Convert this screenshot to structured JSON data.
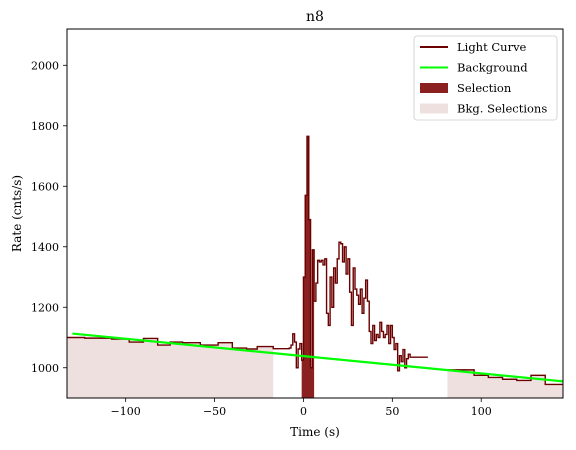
{
  "chart_data": {
    "type": "line",
    "title": "n8",
    "xlabel": "Time (s)",
    "ylabel": "Rate (cnts/s)",
    "xlim": [
      -133,
      146
    ],
    "ylim": [
      900,
      2120
    ],
    "xticks": [
      -100,
      -50,
      0,
      50,
      100
    ],
    "yticks": [
      1000,
      1200,
      1400,
      1600,
      1800,
      2000
    ],
    "legend_placement": "top-right",
    "grid": false,
    "colors": {
      "light_curve": "#6b0000",
      "background": "#00ff00",
      "selection": "#8b2020",
      "bkg_selections": "#efe0e0"
    },
    "legend": [
      {
        "label": "Light Curve",
        "kind": "line",
        "color_key": "light_curve"
      },
      {
        "label": "Background",
        "kind": "line",
        "color_key": "background"
      },
      {
        "label": "Selection",
        "kind": "patch",
        "color_key": "selection"
      },
      {
        "label": "Bkg. Selections",
        "kind": "patch",
        "color_key": "bkg_selections"
      }
    ],
    "background_line": {
      "x": [
        -130,
        146
      ],
      "y": [
        1113,
        955
      ]
    },
    "bkg_selections": [
      [
        -133,
        -17
      ],
      [
        81,
        146
      ]
    ],
    "selection": [
      -1,
      6
    ],
    "light_curve_steps": [
      [
        -133,
        -123,
        1100
      ],
      [
        -123,
        -108,
        1098
      ],
      [
        -108,
        -98,
        1095
      ],
      [
        -98,
        -90,
        1085
      ],
      [
        -90,
        -82,
        1097
      ],
      [
        -82,
        -75,
        1075
      ],
      [
        -75,
        -68,
        1085
      ],
      [
        -68,
        -58,
        1083
      ],
      [
        -58,
        -48,
        1075
      ],
      [
        -48,
        -40,
        1083
      ],
      [
        -40,
        -32,
        1065
      ],
      [
        -32,
        -26,
        1062
      ],
      [
        -26,
        -17,
        1070
      ],
      [
        -17,
        -8,
        1063
      ],
      [
        -8,
        -7,
        1065
      ],
      [
        -7,
        -6,
        1075
      ],
      [
        -6,
        -5,
        1112
      ],
      [
        -5,
        -4,
        1085
      ],
      [
        -4,
        -3,
        1000
      ],
      [
        -3,
        -2,
        1062
      ],
      [
        -2,
        -1,
        1080
      ],
      [
        -1,
        0,
        1025
      ],
      [
        0,
        1,
        1300
      ],
      [
        1,
        2,
        1570
      ],
      [
        2,
        3,
        1765
      ],
      [
        3,
        4,
        1490
      ],
      [
        4,
        5,
        1000
      ],
      [
        5,
        6,
        1390
      ],
      [
        6,
        7,
        1220
      ],
      [
        7,
        8,
        1280
      ],
      [
        8,
        9,
        1355
      ],
      [
        9,
        10,
        1350
      ],
      [
        10,
        11,
        1355
      ],
      [
        11,
        12,
        1340
      ],
      [
        12,
        13,
        1360
      ],
      [
        13,
        14,
        1180
      ],
      [
        14,
        15,
        1140
      ],
      [
        15,
        16,
        1300
      ],
      [
        16,
        17,
        1200
      ],
      [
        17,
        18,
        1330
      ],
      [
        18,
        19,
        1280
      ],
      [
        19,
        20,
        1360
      ],
      [
        20,
        21,
        1415
      ],
      [
        21,
        22,
        1410
      ],
      [
        22,
        23,
        1350
      ],
      [
        23,
        24,
        1400
      ],
      [
        24,
        25,
        1310
      ],
      [
        25,
        26,
        1360
      ],
      [
        26,
        27,
        1250
      ],
      [
        27,
        28,
        1140
      ],
      [
        28,
        29,
        1330
      ],
      [
        29,
        30,
        1260
      ],
      [
        30,
        31,
        1240
      ],
      [
        31,
        32,
        1210
      ],
      [
        32,
        33,
        1260
      ],
      [
        33,
        34,
        1180
      ],
      [
        34,
        35,
        1230
      ],
      [
        35,
        36,
        1290
      ],
      [
        36,
        37,
        1220
      ],
      [
        37,
        38,
        1120
      ],
      [
        38,
        39,
        1080
      ],
      [
        39,
        40,
        1140
      ],
      [
        40,
        41,
        1090
      ],
      [
        41,
        42,
        1110
      ],
      [
        42,
        43,
        1100
      ],
      [
        43,
        44,
        1150
      ],
      [
        44,
        45,
        1120
      ],
      [
        45,
        46,
        1100
      ],
      [
        46,
        47,
        1110
      ],
      [
        47,
        48,
        1140
      ],
      [
        48,
        49,
        1080
      ],
      [
        49,
        50,
        1140
      ],
      [
        50,
        51,
        1100
      ],
      [
        51,
        52,
        1060
      ],
      [
        52,
        53,
        1080
      ],
      [
        53,
        54,
        990
      ],
      [
        54,
        55,
        1040
      ],
      [
        55,
        56,
        1020
      ],
      [
        56,
        57,
        1060
      ],
      [
        57,
        58,
        1000
      ],
      [
        58,
        59,
        1030
      ],
      [
        59,
        60,
        1045
      ],
      [
        60,
        70,
        1035
      ],
      [
        81,
        96,
        993
      ],
      [
        96,
        104,
        975
      ],
      [
        104,
        112,
        968
      ],
      [
        112,
        120,
        962
      ],
      [
        120,
        128,
        958
      ],
      [
        128,
        136,
        975
      ],
      [
        136,
        146,
        945
      ]
    ]
  }
}
